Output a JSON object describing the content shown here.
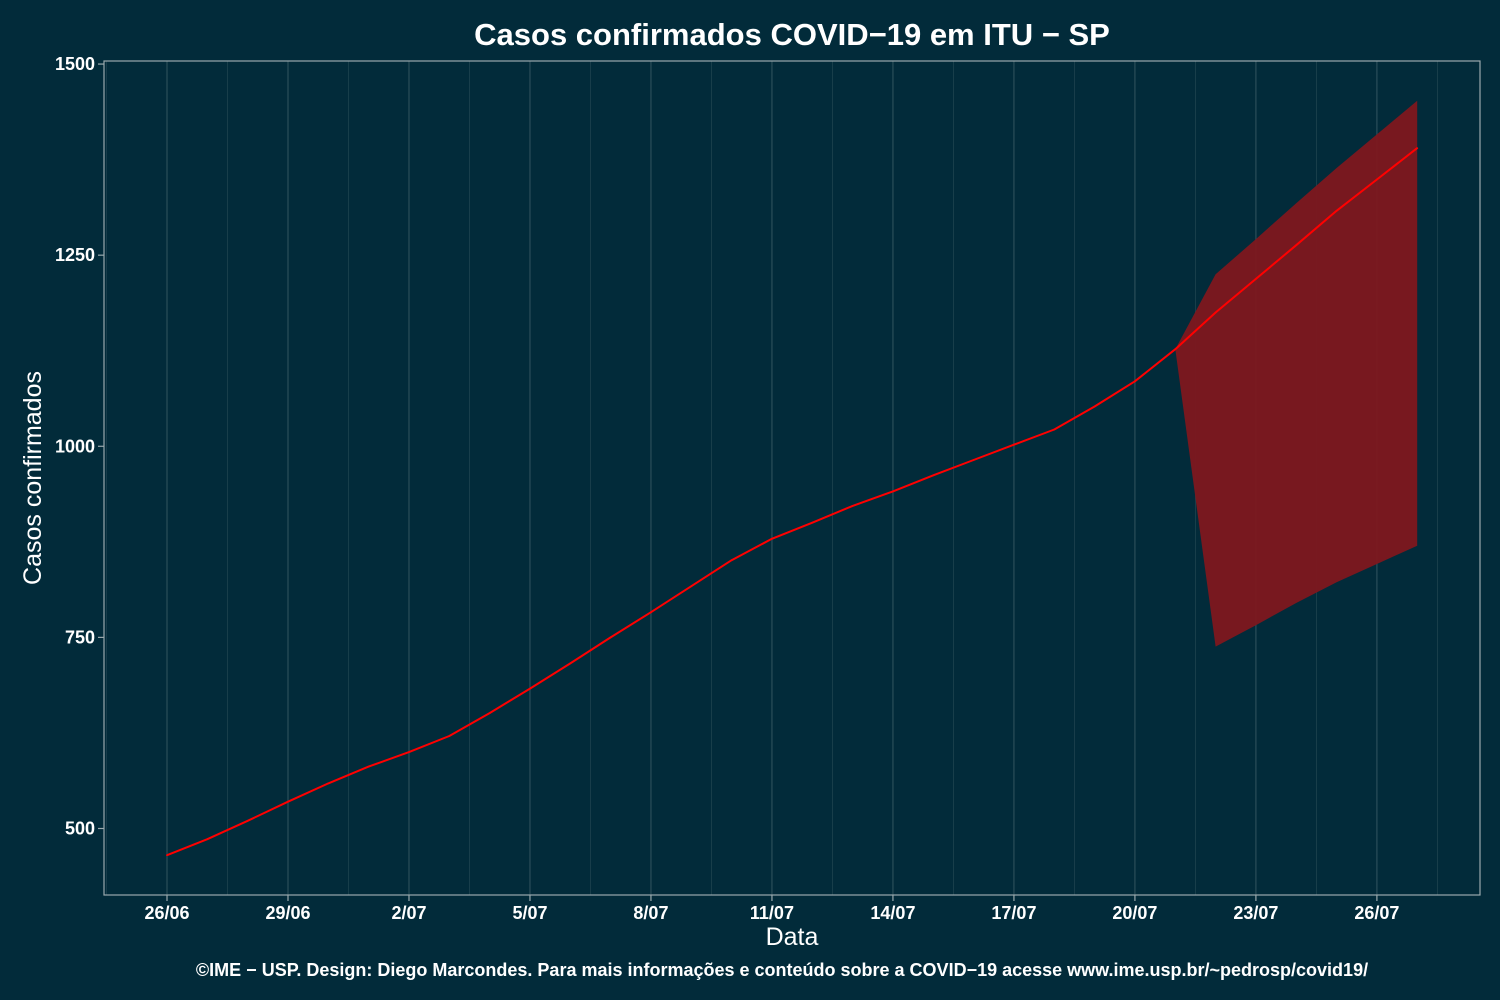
{
  "chart_data": {
    "type": "line",
    "title": "Casos confirmados COVID−19 em ITU − SP",
    "xlabel": "Data",
    "ylabel": "Casos confirmados",
    "caption": "©IME − USP. Design: Diego Marcondes. Para mais informações e conteúdo sobre a COVID−19 acesse www.ime.usp.br/~pedrosp/covid19/",
    "x_ticks": [
      "26/06",
      "29/06",
      "2/07",
      "5/07",
      "8/07",
      "11/07",
      "14/07",
      "17/07",
      "20/07",
      "23/07",
      "26/07"
    ],
    "y_ticks": [
      500,
      750,
      1000,
      1250,
      1500
    ],
    "ylim": [
      413,
      1504
    ],
    "grid": true,
    "colors": {
      "background": "#022b3a",
      "grid": "#2b4e59",
      "axis": "#9aa9ad",
      "line": "#ff0000",
      "band": "#7e171e"
    },
    "series": [
      {
        "x": [
          "26/06",
          "27/06",
          "28/06",
          "29/06",
          "30/06",
          "1/07",
          "2/07",
          "3/07",
          "4/07",
          "5/07",
          "6/07",
          "7/07",
          "8/07",
          "9/07",
          "10/07",
          "11/07",
          "12/07",
          "13/07",
          "14/07",
          "15/07",
          "16/07",
          "17/07",
          "18/07",
          "19/07",
          "20/07",
          "21/07",
          "22/07",
          "23/07",
          "24/07",
          "25/07",
          "26/07",
          "27/07"
        ],
        "y": [
          465,
          486,
          510,
          535,
          559,
          581,
          600,
          621,
          651,
          683,
          716,
          750,
          783,
          817,
          851,
          879,
          900,
          922,
          941,
          962,
          982,
          1002,
          1022,
          1052,
          1085,
          1127,
          1175,
          1219,
          1263,
          1308,
          1349,
          1390
        ]
      }
    ],
    "interval": {
      "x": [
        "21/07",
        "22/07",
        "23/07",
        "24/07",
        "25/07",
        "26/07",
        "27/07"
      ],
      "lower": [
        1127,
        738,
        766,
        795,
        822,
        846,
        870
      ],
      "upper": [
        1127,
        1225,
        1271,
        1318,
        1364,
        1408,
        1452
      ]
    }
  }
}
